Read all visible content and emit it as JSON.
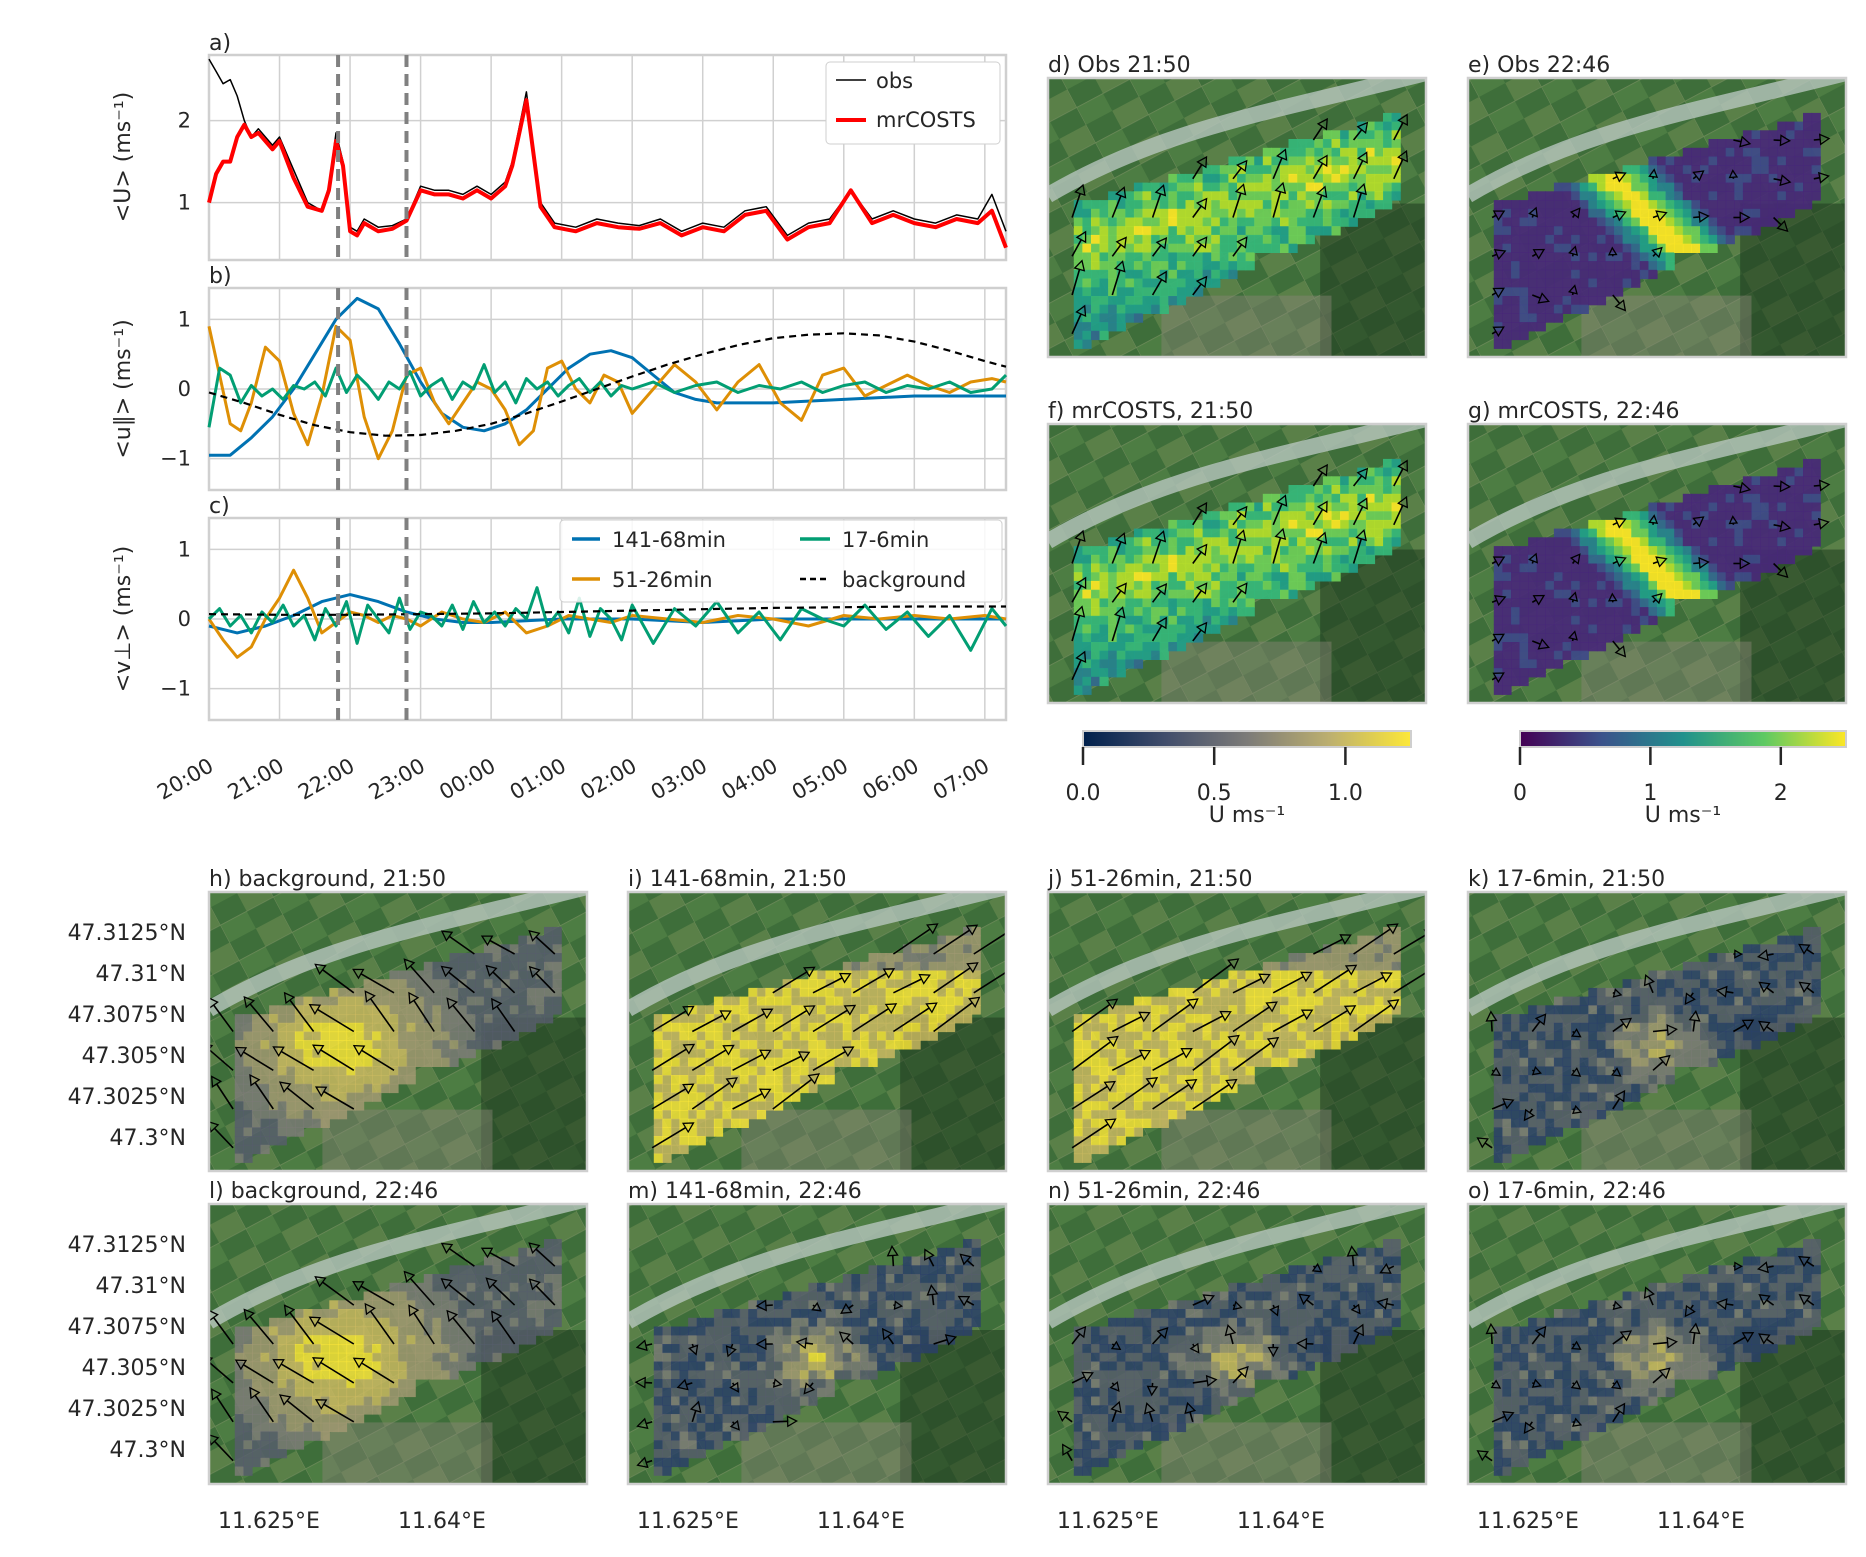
{
  "colors": {
    "obs": "#000000",
    "mrcosts": "#ff0000",
    "s141": "#0072b2",
    "s51": "#de8f05",
    "s17": "#029e73",
    "background": "#000000",
    "grid": "#d0d0d0",
    "frame": "#cfcfcf",
    "vline": "#808080"
  },
  "chart_data": [
    {
      "type": "line",
      "panel": "a)",
      "ylabel": "<U> (ms⁻¹)",
      "x_unit": "hours since 20:00",
      "xlim": [
        0,
        11.3
      ],
      "ylim": [
        0.3,
        2.8
      ],
      "yticks": [
        1,
        2
      ],
      "vlines": [
        1.83,
        2.8
      ],
      "legend": [
        "obs",
        "mrCOSTS"
      ],
      "series": [
        {
          "name": "obs",
          "x": [
            0,
            0.1,
            0.2,
            0.3,
            0.4,
            0.5,
            0.6,
            0.7,
            0.8,
            0.9,
            1.0,
            1.2,
            1.4,
            1.6,
            1.7,
            1.8,
            1.9,
            2.0,
            2.1,
            2.2,
            2.4,
            2.6,
            2.8,
            3.0,
            3.2,
            3.4,
            3.6,
            3.8,
            4.0,
            4.2,
            4.3,
            4.5,
            4.7,
            4.9,
            5.2,
            5.5,
            5.8,
            6.1,
            6.4,
            6.7,
            7.0,
            7.3,
            7.6,
            7.9,
            8.2,
            8.5,
            8.8,
            9.1,
            9.4,
            9.7,
            10.0,
            10.3,
            10.6,
            10.9,
            11.1,
            11.3
          ],
          "values": [
            2.75,
            2.6,
            2.45,
            2.5,
            2.3,
            2.0,
            1.8,
            1.9,
            1.8,
            1.7,
            1.8,
            1.4,
            1.0,
            0.9,
            1.2,
            1.85,
            1.5,
            0.7,
            0.65,
            0.8,
            0.7,
            0.72,
            0.8,
            1.2,
            1.15,
            1.15,
            1.1,
            1.2,
            1.1,
            1.25,
            1.5,
            2.35,
            1.0,
            0.75,
            0.7,
            0.8,
            0.75,
            0.72,
            0.8,
            0.65,
            0.75,
            0.7,
            0.9,
            0.95,
            0.6,
            0.75,
            0.8,
            1.15,
            0.8,
            0.9,
            0.8,
            0.75,
            0.85,
            0.8,
            1.1,
            0.65
          ]
        },
        {
          "name": "mrCOSTS",
          "x": [
            0,
            0.1,
            0.2,
            0.3,
            0.4,
            0.5,
            0.6,
            0.7,
            0.8,
            0.9,
            1.0,
            1.2,
            1.4,
            1.6,
            1.7,
            1.8,
            1.9,
            2.0,
            2.1,
            2.2,
            2.4,
            2.6,
            2.8,
            3.0,
            3.2,
            3.4,
            3.6,
            3.8,
            4.0,
            4.2,
            4.3,
            4.5,
            4.7,
            4.9,
            5.2,
            5.5,
            5.8,
            6.1,
            6.4,
            6.7,
            7.0,
            7.3,
            7.6,
            7.9,
            8.2,
            8.5,
            8.8,
            9.1,
            9.4,
            9.7,
            10.0,
            10.3,
            10.6,
            10.9,
            11.1,
            11.3
          ],
          "values": [
            1.0,
            1.35,
            1.5,
            1.5,
            1.8,
            1.95,
            1.8,
            1.85,
            1.75,
            1.65,
            1.75,
            1.3,
            0.95,
            0.9,
            1.15,
            1.75,
            1.45,
            0.65,
            0.6,
            0.75,
            0.65,
            0.68,
            0.78,
            1.15,
            1.1,
            1.1,
            1.05,
            1.15,
            1.05,
            1.2,
            1.45,
            2.25,
            0.95,
            0.7,
            0.65,
            0.75,
            0.7,
            0.68,
            0.75,
            0.6,
            0.7,
            0.65,
            0.85,
            0.9,
            0.55,
            0.7,
            0.75,
            1.15,
            0.75,
            0.85,
            0.75,
            0.7,
            0.8,
            0.75,
            0.9,
            0.45
          ]
        }
      ]
    },
    {
      "type": "line",
      "panel": "b)",
      "ylabel": "<u∥> (ms⁻¹)",
      "x_unit": "hours since 20:00",
      "xlim": [
        0,
        11.3
      ],
      "ylim": [
        -1.45,
        1.45
      ],
      "yticks": [
        -1,
        0,
        1
      ],
      "vlines": [
        1.83,
        2.8
      ],
      "series": [
        {
          "name": "141-68min",
          "x": [
            0,
            0.3,
            0.6,
            0.9,
            1.2,
            1.5,
            1.8,
            2.1,
            2.4,
            2.7,
            3.0,
            3.3,
            3.6,
            3.9,
            4.2,
            4.5,
            4.8,
            5.1,
            5.4,
            5.7,
            6.0,
            6.3,
            6.6,
            6.9,
            7.2,
            8.0,
            9.0,
            10.0,
            11.3
          ],
          "values": [
            -0.95,
            -0.95,
            -0.7,
            -0.4,
            0.0,
            0.5,
            1.0,
            1.3,
            1.15,
            0.65,
            0.1,
            -0.35,
            -0.55,
            -0.6,
            -0.5,
            -0.3,
            0.0,
            0.3,
            0.5,
            0.55,
            0.45,
            0.2,
            -0.05,
            -0.15,
            -0.2,
            -0.2,
            -0.15,
            -0.1,
            -0.1
          ]
        },
        {
          "name": "51-26min",
          "x": [
            0,
            0.15,
            0.3,
            0.45,
            0.6,
            0.8,
            1.0,
            1.2,
            1.4,
            1.6,
            1.8,
            2.0,
            2.2,
            2.4,
            2.6,
            2.8,
            3.0,
            3.2,
            3.4,
            3.6,
            3.8,
            4.0,
            4.2,
            4.4,
            4.6,
            4.8,
            5.0,
            5.2,
            5.4,
            5.6,
            5.8,
            6.0,
            6.3,
            6.6,
            6.9,
            7.2,
            7.5,
            7.8,
            8.1,
            8.4,
            8.7,
            9.0,
            9.3,
            9.6,
            9.9,
            10.2,
            10.5,
            10.8,
            11.1,
            11.3
          ],
          "values": [
            0.9,
            0.2,
            -0.5,
            -0.6,
            -0.2,
            0.6,
            0.4,
            -0.35,
            -0.8,
            -0.1,
            0.9,
            0.7,
            -0.4,
            -1.0,
            -0.6,
            0.2,
            0.3,
            -0.2,
            -0.5,
            -0.2,
            0.1,
            0.0,
            -0.3,
            -0.8,
            -0.6,
            0.3,
            0.4,
            0.0,
            -0.2,
            0.2,
            0.1,
            -0.35,
            0.0,
            0.35,
            0.1,
            -0.3,
            0.1,
            0.35,
            -0.2,
            -0.45,
            0.2,
            0.3,
            -0.1,
            0.05,
            0.2,
            0.05,
            -0.05,
            0.1,
            0.15,
            0.1
          ]
        },
        {
          "name": "17-6min",
          "x": [
            0,
            0.15,
            0.3,
            0.45,
            0.6,
            0.75,
            0.9,
            1.05,
            1.2,
            1.35,
            1.5,
            1.65,
            1.8,
            1.95,
            2.1,
            2.25,
            2.4,
            2.55,
            2.7,
            2.85,
            3.0,
            3.15,
            3.3,
            3.45,
            3.6,
            3.75,
            3.9,
            4.05,
            4.2,
            4.35,
            4.5,
            4.65,
            4.8,
            4.95,
            5.1,
            5.25,
            5.4,
            5.55,
            5.7,
            5.85,
            6.0,
            6.3,
            6.6,
            6.9,
            7.2,
            7.5,
            7.8,
            8.1,
            8.4,
            8.7,
            9.0,
            9.3,
            9.6,
            9.9,
            10.2,
            10.5,
            10.8,
            11.1,
            11.3
          ],
          "values": [
            -0.55,
            0.3,
            0.2,
            -0.2,
            0.05,
            -0.1,
            0.0,
            -0.15,
            0.05,
            0.0,
            0.1,
            -0.1,
            0.3,
            -0.05,
            0.2,
            0.05,
            -0.15,
            0.1,
            0.0,
            0.25,
            -0.1,
            0.05,
            0.15,
            -0.15,
            0.1,
            0.0,
            0.35,
            -0.05,
            0.1,
            -0.2,
            0.15,
            0.0,
            0.1,
            -0.1,
            0.05,
            0.15,
            -0.05,
            0.1,
            -0.1,
            0.05,
            0.0,
            0.1,
            -0.05,
            0.05,
            0.1,
            -0.05,
            0.05,
            0.0,
            0.1,
            -0.05,
            0.05,
            0.1,
            -0.05,
            0.05,
            0.0,
            0.1,
            -0.05,
            0.0,
            0.2
          ]
        },
        {
          "name": "background",
          "x": [
            0,
            0.5,
            1.0,
            1.5,
            2.0,
            2.5,
            3.0,
            3.5,
            4.0,
            4.5,
            5.0,
            5.5,
            6.0,
            6.5,
            7.0,
            7.5,
            8.0,
            8.5,
            9.0,
            9.5,
            10.0,
            10.5,
            11.0,
            11.3
          ],
          "values": [
            -0.05,
            -0.2,
            -0.37,
            -0.52,
            -0.62,
            -0.67,
            -0.66,
            -0.6,
            -0.5,
            -0.35,
            -0.18,
            0.0,
            0.18,
            0.35,
            0.5,
            0.63,
            0.73,
            0.78,
            0.8,
            0.77,
            0.68,
            0.55,
            0.4,
            0.32
          ]
        }
      ]
    },
    {
      "type": "line",
      "panel": "c)",
      "ylabel": "<v⊥> (ms⁻¹)",
      "x_unit": "hours since 20:00",
      "xlim": [
        0,
        11.3
      ],
      "ylim": [
        -1.45,
        1.45
      ],
      "yticks": [
        -1,
        0,
        1
      ],
      "vlines": [
        1.83,
        2.8
      ],
      "xticks": [
        "20:00",
        "21:00",
        "22:00",
        "23:00",
        "00:00",
        "01:00",
        "02:00",
        "03:00",
        "04:00",
        "05:00",
        "06:00",
        "07:00"
      ],
      "legend": [
        "141-68min",
        "51-26min",
        "17-6min",
        "background"
      ],
      "series": [
        {
          "name": "141-68min",
          "x": [
            0,
            0.4,
            0.8,
            1.2,
            1.6,
            2.0,
            2.4,
            2.8,
            3.2,
            3.6,
            4.0,
            5.0,
            6.0,
            7.0,
            8.0,
            9.0,
            10.0,
            11.3
          ],
          "values": [
            -0.1,
            -0.2,
            -0.1,
            0.05,
            0.25,
            0.35,
            0.25,
            0.1,
            0.0,
            -0.05,
            -0.05,
            0.0,
            0.0,
            -0.05,
            0.0,
            0.0,
            0.0,
            0.0
          ]
        },
        {
          "name": "51-26min",
          "x": [
            0,
            0.2,
            0.4,
            0.6,
            0.8,
            1.0,
            1.2,
            1.4,
            1.6,
            1.8,
            2.0,
            2.2,
            2.4,
            2.6,
            2.8,
            3.0,
            3.3,
            3.6,
            3.9,
            4.2,
            4.5,
            4.8,
            5.1,
            5.4,
            5.7,
            6.0,
            6.5,
            7.0,
            7.5,
            8.0,
            8.5,
            9.0,
            9.5,
            10.0,
            10.5,
            11.0,
            11.3
          ],
          "values": [
            0.0,
            -0.3,
            -0.55,
            -0.4,
            0.0,
            0.3,
            0.7,
            0.3,
            -0.2,
            -0.05,
            0.1,
            0.05,
            -0.05,
            0.05,
            0.0,
            -0.1,
            0.1,
            0.0,
            -0.05,
            0.1,
            -0.2,
            -0.1,
            0.05,
            0.0,
            -0.05,
            0.05,
            0.0,
            -0.05,
            0.05,
            0.0,
            -0.1,
            0.05,
            0.0,
            0.05,
            0.0,
            0.05,
            0.0
          ]
        },
        {
          "name": "17-6min",
          "x": [
            0,
            0.15,
            0.3,
            0.45,
            0.6,
            0.75,
            0.9,
            1.05,
            1.2,
            1.35,
            1.5,
            1.65,
            1.8,
            1.95,
            2.1,
            2.25,
            2.4,
            2.55,
            2.7,
            2.85,
            3.0,
            3.15,
            3.3,
            3.45,
            3.6,
            3.75,
            3.9,
            4.05,
            4.2,
            4.35,
            4.5,
            4.65,
            4.8,
            4.95,
            5.1,
            5.25,
            5.4,
            5.55,
            5.7,
            5.85,
            6.0,
            6.3,
            6.6,
            6.9,
            7.2,
            7.5,
            7.8,
            8.1,
            8.4,
            8.7,
            9.0,
            9.3,
            9.6,
            9.9,
            10.2,
            10.5,
            10.8,
            11.1,
            11.3
          ],
          "values": [
            0.0,
            0.15,
            -0.1,
            0.05,
            -0.2,
            0.1,
            -0.05,
            0.2,
            -0.1,
            0.05,
            -0.3,
            0.15,
            -0.1,
            0.25,
            -0.35,
            0.2,
            0.0,
            -0.2,
            0.3,
            -0.15,
            0.1,
            0.05,
            -0.1,
            0.2,
            -0.15,
            0.25,
            -0.05,
            0.1,
            -0.1,
            0.15,
            0.0,
            0.45,
            -0.1,
            0.1,
            -0.2,
            0.3,
            -0.25,
            0.15,
            0.0,
            -0.3,
            0.2,
            -0.35,
            0.15,
            -0.1,
            0.25,
            -0.2,
            0.1,
            -0.3,
            0.15,
            0.0,
            -0.1,
            0.2,
            -0.15,
            0.1,
            -0.25,
            0.05,
            -0.45,
            0.15,
            -0.1
          ]
        },
        {
          "name": "background",
          "x": [
            0,
            1,
            2,
            3,
            4,
            5,
            6,
            7,
            8,
            9,
            10,
            11.3
          ],
          "values": [
            0.07,
            0.06,
            0.06,
            0.07,
            0.08,
            0.1,
            0.12,
            0.14,
            0.16,
            0.17,
            0.18,
            0.18
          ]
        }
      ]
    }
  ],
  "maps": {
    "row1": [
      {
        "label": "d) Obs 21:50",
        "scale": "viridis",
        "variant": "obs1"
      },
      {
        "label": "e) Obs 22:46",
        "scale": "viridis",
        "variant": "obs2"
      }
    ],
    "row2": [
      {
        "label": "f) mrCOSTS, 21:50",
        "scale": "viridis",
        "variant": "obs1"
      },
      {
        "label": "g) mrCOSTS, 22:46",
        "scale": "viridis",
        "variant": "obs2"
      }
    ],
    "row3": [
      {
        "label": "h) background, 21:50",
        "scale": "cividis",
        "variant": "bg"
      },
      {
        "label": "i) 141-68min, 21:50",
        "scale": "cividis",
        "variant": "full"
      },
      {
        "label": "j) 51-26min, 21:50",
        "scale": "cividis",
        "variant": "full"
      },
      {
        "label": "k) 17-6min, 21:50",
        "scale": "cividis",
        "variant": "low"
      }
    ],
    "row4": [
      {
        "label": "l) background, 22:46",
        "scale": "cividis",
        "variant": "bg"
      },
      {
        "label": "m) 141-68min, 22:46",
        "scale": "cividis",
        "variant": "low"
      },
      {
        "label": "n) 51-26min, 22:46",
        "scale": "cividis",
        "variant": "low"
      },
      {
        "label": "o) 17-6min, 22:46",
        "scale": "cividis",
        "variant": "low"
      }
    ],
    "lat_ticks": [
      "47.3125°N",
      "47.31°N",
      "47.3075°N",
      "47.305°N",
      "47.3025°N",
      "47.3°N"
    ],
    "lon_ticks": [
      "11.625°E",
      "11.64°E"
    ]
  },
  "colorbars": [
    {
      "name": "cividis",
      "ticks": [
        "0.0",
        "0.5",
        "1.0"
      ],
      "tick_values": [
        0,
        0.5,
        1.0
      ],
      "range": [
        0,
        1.25
      ],
      "label": "U ms⁻¹"
    },
    {
      "name": "viridis",
      "ticks": [
        "0",
        "1",
        "2"
      ],
      "tick_values": [
        0,
        1,
        2
      ],
      "range": [
        0,
        2.5
      ],
      "label": "U ms⁻¹"
    }
  ]
}
